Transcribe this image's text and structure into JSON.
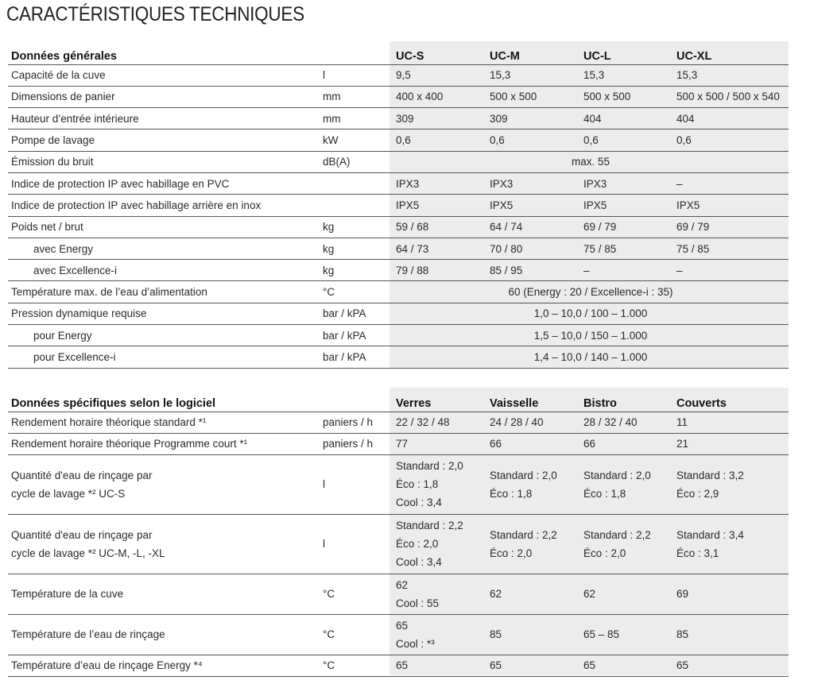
{
  "title": "CARACTÉRISTIQUES TECHNIQUES",
  "general": {
    "heading": "Données générales",
    "columns": [
      "UC-S",
      "UC-M",
      "UC-L",
      "UC-XL"
    ],
    "rows": [
      {
        "label": "Capacité de la cuve",
        "unit": "l",
        "values": [
          "9,5",
          "15,3",
          "15,3",
          "15,3"
        ]
      },
      {
        "label": "Dimensions de panier",
        "unit": "mm",
        "values": [
          "400 x 400",
          "500 x 500",
          "500 x 500",
          "500 x 500 / 500 x 540"
        ]
      },
      {
        "label": "Hauteur d’entrée intérieure",
        "unit": "mm",
        "values": [
          "309",
          "309",
          "404",
          "404"
        ]
      },
      {
        "label": "Pompe de lavage",
        "unit": "kW",
        "values": [
          "0,6",
          "0,6",
          "0,6",
          "0,6"
        ]
      },
      {
        "label": "Émission du bruit",
        "unit": "dB(A)",
        "span": "max. 55"
      },
      {
        "label": "Indice de protection IP avec habillage en PVC",
        "unit": "",
        "values": [
          "IPX3",
          "IPX3",
          "IPX3",
          "–"
        ]
      },
      {
        "label": "Indice de protection IP avec habillage arrière en inox",
        "unit": "",
        "values": [
          "IPX5",
          "IPX5",
          "IPX5",
          "IPX5"
        ]
      },
      {
        "label": "Poids net / brut",
        "unit": "kg",
        "values": [
          "59 / 68",
          "64 / 74",
          "69 / 79",
          "69 / 79"
        ]
      },
      {
        "label": "avec Energy",
        "unit": "kg",
        "indent": true,
        "values": [
          "64 / 73",
          "70 / 80",
          "75 / 85",
          "75 / 85"
        ]
      },
      {
        "label": "avec Excellence-i",
        "unit": "kg",
        "indent": true,
        "values": [
          "79 / 88",
          "85 / 95",
          "–",
          "–"
        ]
      },
      {
        "label": "Température max. de l’eau d’alimentation",
        "unit": "°C",
        "span": "60 (Energy : 20 / Excellence-i : 35)"
      },
      {
        "label": "Pression dynamique requise",
        "unit": "bar / kPA",
        "span": "1,0 – 10,0 / 100 – 1.000"
      },
      {
        "label": "pour Energy",
        "unit": "bar / kPA",
        "indent": true,
        "span": "1,5 – 10,0 / 150 – 1.000"
      },
      {
        "label": "pour Excellence-i",
        "unit": "bar / kPA",
        "indent": true,
        "span": "1,4 – 10,0 / 140 – 1.000"
      }
    ]
  },
  "software": {
    "heading": "Données spécifiques selon le logiciel",
    "columns": [
      "Verres",
      "Vaisselle",
      "Bistro",
      "Couverts"
    ],
    "rows": [
      {
        "label": [
          "Rendement horaire théorique standard *¹"
        ],
        "unit": "paniers / h",
        "values": [
          [
            "22 / 32 / 48"
          ],
          [
            "24 / 28 / 40"
          ],
          [
            "28 / 32 / 40"
          ],
          [
            "11"
          ]
        ]
      },
      {
        "label": [
          "Rendement horaire théorique Programme court *¹"
        ],
        "unit": "paniers / h",
        "values": [
          [
            "77"
          ],
          [
            "66"
          ],
          [
            "66"
          ],
          [
            "21"
          ]
        ]
      },
      {
        "label": [
          "Quantité d'eau de rinçage par",
          "cycle de lavage *² UC-S"
        ],
        "unit": "l",
        "values": [
          [
            "Standard : 2,0",
            "Éco : 1,8",
            "Cool : 3,4"
          ],
          [
            "Standard : 2,0",
            "Éco : 1,8"
          ],
          [
            "Standard : 2,0",
            "Éco : 1,8"
          ],
          [
            "Standard : 3,2",
            "Éco : 2,9"
          ]
        ]
      },
      {
        "label": [
          "Quantité d'eau de rinçage par",
          "cycle de lavage *² UC-M, -L, -XL"
        ],
        "unit": "l",
        "values": [
          [
            "Standard : 2,2",
            "Éco : 2,0",
            "Cool : 3,4"
          ],
          [
            "Standard : 2,2",
            "Éco : 2,0"
          ],
          [
            "Standard : 2,2",
            "Éco : 2,0"
          ],
          [
            "Standard : 3,4",
            "Éco : 3,1"
          ]
        ]
      },
      {
        "label": [
          "Température de la cuve"
        ],
        "unit": "°C",
        "values": [
          [
            "62",
            "Cool : 55"
          ],
          [
            "62"
          ],
          [
            "62"
          ],
          [
            "69"
          ]
        ]
      },
      {
        "label": [
          "Température de l’eau de rinçage"
        ],
        "unit": "°C",
        "values": [
          [
            "65",
            "Cool : *³"
          ],
          [
            "85"
          ],
          [
            "65 – 85"
          ],
          [
            "85"
          ]
        ]
      },
      {
        "label": [
          "Température d’eau de rinçage Energy *⁴"
        ],
        "unit": "°C",
        "values": [
          [
            "65"
          ],
          [
            "65"
          ],
          [
            "65"
          ],
          [
            "65"
          ]
        ]
      }
    ]
  }
}
